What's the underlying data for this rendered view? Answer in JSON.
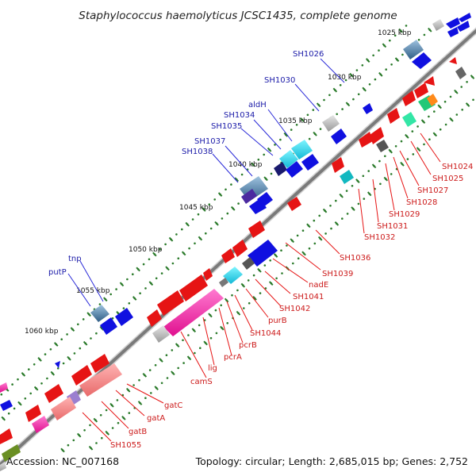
{
  "title": "Staphylococcus haemolyticus JCSC1435, complete genome",
  "footer": {
    "accession": "Accession: NC_007168",
    "summary": "Topology: circular; Length: 2,685,015 bp; Genes: 2,752"
  },
  "ticks": [
    "1025 kbp",
    "1030 kbp",
    "1035 kbp",
    "1040 kbp",
    "1045 kbp",
    "1050 kbp",
    "1055 kbp",
    "1060 kbp"
  ],
  "outer_labels": [
    "SH1026",
    "SH1030",
    "aldH",
    "SH1034",
    "SH1035",
    "SH1037",
    "SH1038",
    "tnp",
    "putP"
  ],
  "inner_labels": [
    "SH1024",
    "SH1025",
    "SH1027",
    "SH1028",
    "SH1029",
    "SH1031",
    "SH1032",
    "SH1036",
    "SH1039",
    "nadE",
    "SH1041",
    "SH1042",
    "purB",
    "SH1044",
    "pcrB",
    "pcrA",
    "lig",
    "camS",
    "gatC",
    "gatA",
    "gatB",
    "SH1055"
  ],
  "colors": {
    "backbone": "#8a8a8a",
    "forward_gene": "#1414e6",
    "reverse_gene": "#e61414",
    "outer_label": "#1a1aa8",
    "inner_label": "#cc1a1a",
    "tick": "#2a7a2a"
  }
}
